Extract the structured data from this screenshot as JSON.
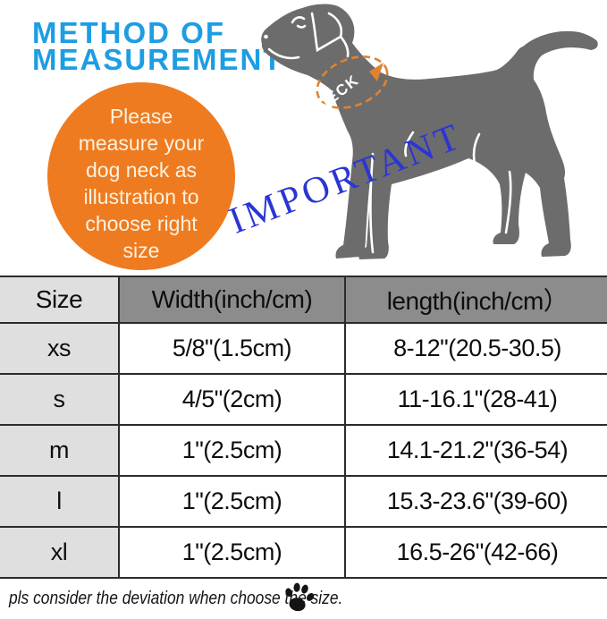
{
  "header": {
    "title_line1": "METHOD OF",
    "title_line2": "MEASUREMENT"
  },
  "instruction_bubble": {
    "lines": [
      "Please",
      "measure your",
      "dog neck as",
      "illustration to",
      "choose right",
      "size"
    ]
  },
  "diagram": {
    "neck_label": "NECK",
    "important_label": "IMPORTANT",
    "dog_icon": "dog-silhouette-icon",
    "measure_loop_icon": "dashed-measuring-loop-icon"
  },
  "table": {
    "headers": [
      "Size",
      "Width(inch/cm)",
      "length(inch/cm）"
    ],
    "rows": [
      {
        "size": "xs",
        "width": "5/8\"(1.5cm)",
        "length": "8-12\"(20.5-30.5)"
      },
      {
        "size": "s",
        "width": "4/5\"(2cm)",
        "length": "11-16.1\"(28-41)"
      },
      {
        "size": "m",
        "width": "1\"(2.5cm)",
        "length": "14.1-21.2\"(36-54)"
      },
      {
        "size": "l",
        "width": "1\"(2.5cm)",
        "length": "15.3-23.6\"(39-60)"
      },
      {
        "size": "xl",
        "width": "1\"(2.5cm)",
        "length": "16.5-26\"(42-66)"
      }
    ]
  },
  "footer": {
    "note": "pls consider the deviation when choose the size.",
    "paw_icon": "paw-print-icon"
  },
  "colors": {
    "title_blue": "#1C9DE4",
    "bubble_orange": "#EF7B21",
    "bubble_text": "#FBF2E0",
    "important_blue": "#2B35D5",
    "dog_gray": "#6C6C6C",
    "measure_loop_orange": "#E0832F",
    "table_header_dark": "#8C8C8C",
    "table_header_light": "#DFDFDF",
    "table_border": "#2b2b2b"
  }
}
